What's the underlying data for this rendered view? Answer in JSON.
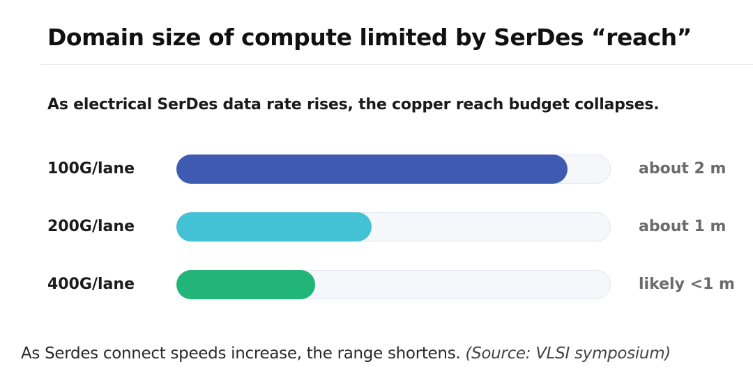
{
  "chart_data": {
    "type": "bar",
    "orientation": "horizontal",
    "title": "Domain size of compute limited by SerDes “reach”",
    "subtitle": "As electrical SerDes data rate rises, the copper reach budget collapses.",
    "categories": [
      "100G/lane",
      "200G/lane",
      "400G/lane"
    ],
    "value_labels": [
      "about 2 m",
      "about 1 m",
      "likely <1 m"
    ],
    "values": [
      0.9,
      0.45,
      0.32
    ],
    "bar_colors": [
      "#3f5bb1",
      "#43c2d6",
      "#22b57a"
    ],
    "grid": false
  },
  "caption": {
    "text": "As Serdes connect speeds increase, the range shortens.",
    "source": "(Source: VLSI symposium)"
  }
}
